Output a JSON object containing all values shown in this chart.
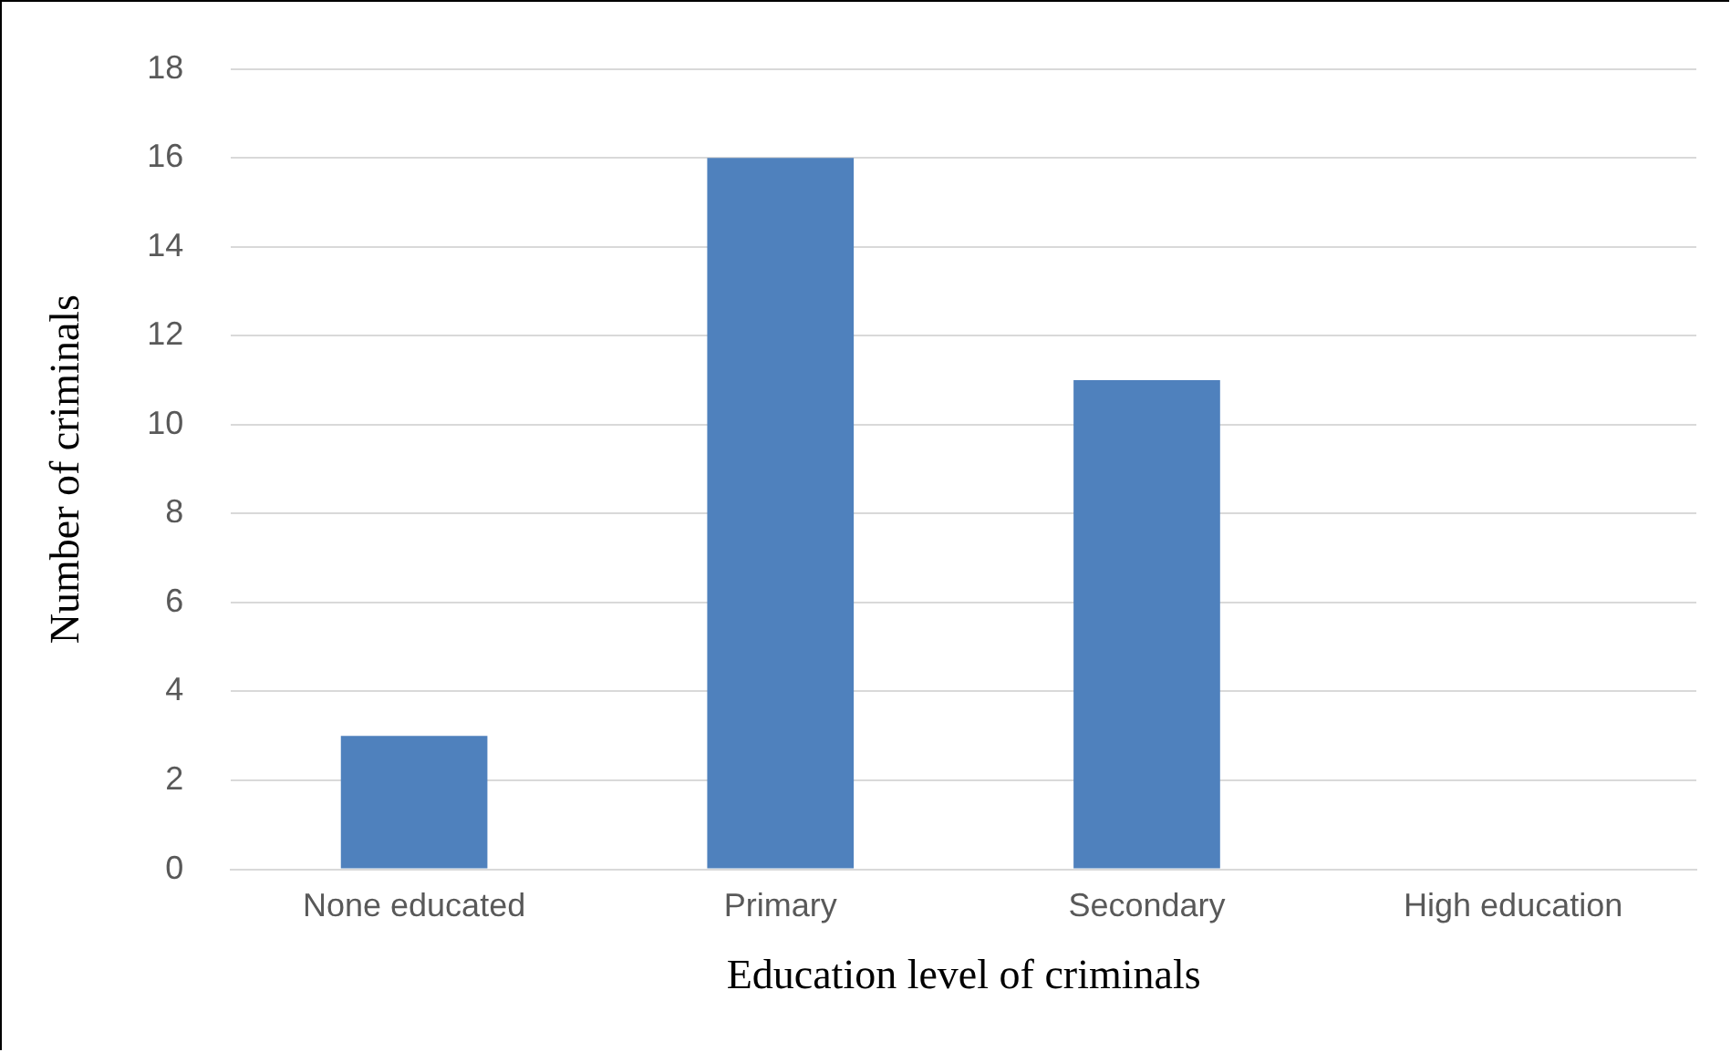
{
  "chart_data": {
    "type": "bar",
    "xlabel": "Education level of criminals",
    "ylabel": "Number of criminals",
    "categories": [
      "None educated",
      "Primary",
      "Secondary",
      "High education"
    ],
    "values": [
      3,
      16,
      11,
      0
    ],
    "color": "#4f81bd",
    "ylim": [
      0,
      18
    ],
    "yticks": [
      0,
      2,
      4,
      6,
      8,
      10,
      12,
      14,
      16,
      18
    ],
    "grid": "y",
    "legend": false
  }
}
